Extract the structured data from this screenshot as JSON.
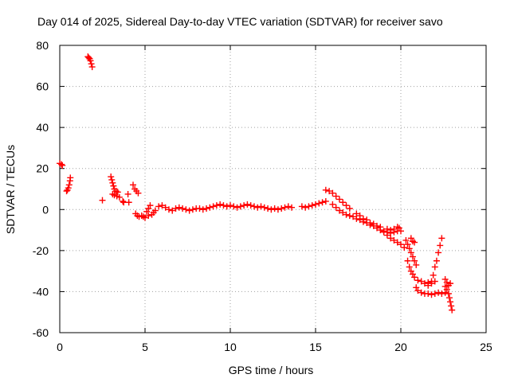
{
  "chart_data": {
    "type": "scatter",
    "title": "Day 014 of 2025, Sidereal Day-to-day VTEC variation (SDTVAR) for receiver savo",
    "xlabel": "GPS time / hours",
    "ylabel": "SDTVAR / TECUs",
    "xlim": [
      0,
      25
    ],
    "ylim": [
      -60,
      80
    ],
    "xticks": [
      0,
      5,
      10,
      15,
      20,
      25
    ],
    "yticks": [
      -60,
      -40,
      -20,
      0,
      20,
      40,
      60,
      80
    ],
    "grid": true,
    "marker": "plus",
    "series_color": "#ff0000",
    "series": [
      {
        "name": "SDTVAR",
        "points": [
          [
            0.0,
            22.5
          ],
          [
            0.1,
            22.0
          ],
          [
            0.15,
            21.5
          ],
          [
            0.4,
            9.0
          ],
          [
            0.45,
            9.5
          ],
          [
            0.5,
            10.5
          ],
          [
            0.55,
            12.0
          ],
          [
            0.6,
            14.0
          ],
          [
            0.62,
            15.5
          ],
          [
            1.65,
            74.5
          ],
          [
            1.7,
            74.0
          ],
          [
            1.75,
            73.5
          ],
          [
            1.8,
            72.5
          ],
          [
            1.85,
            71.0
          ],
          [
            1.9,
            69.5
          ],
          [
            2.5,
            4.5
          ],
          [
            3.0,
            16.0
          ],
          [
            3.05,
            14.5
          ],
          [
            3.1,
            13.0
          ],
          [
            3.15,
            11.5
          ],
          [
            3.2,
            10.0
          ],
          [
            3.3,
            9.0
          ],
          [
            3.4,
            8.5
          ],
          [
            3.1,
            7.5
          ],
          [
            3.2,
            7.0
          ],
          [
            3.35,
            6.5
          ],
          [
            3.5,
            6.0
          ],
          [
            3.7,
            4.0
          ],
          [
            3.75,
            3.5
          ],
          [
            4.0,
            7.5
          ],
          [
            4.05,
            3.5
          ],
          [
            4.3,
            12.0
          ],
          [
            4.4,
            10.0
          ],
          [
            4.5,
            9.0
          ],
          [
            4.6,
            8.0
          ],
          [
            4.45,
            -2.0
          ],
          [
            4.55,
            -3.0
          ],
          [
            4.65,
            -3.5
          ],
          [
            4.8,
            -3.0
          ],
          [
            4.9,
            -3.5
          ],
          [
            5.0,
            -4.0
          ],
          [
            5.1,
            -1.0
          ],
          [
            5.2,
            0.5
          ],
          [
            5.3,
            2.0
          ],
          [
            5.2,
            -3.0
          ],
          [
            5.4,
            -2.5
          ],
          [
            5.5,
            -1.5
          ],
          [
            5.6,
            -0.5
          ],
          [
            5.8,
            1.5
          ],
          [
            6.0,
            2.0
          ],
          [
            6.2,
            1.0
          ],
          [
            6.4,
            0.0
          ],
          [
            6.6,
            -0.5
          ],
          [
            6.8,
            0.5
          ],
          [
            7.0,
            1.0
          ],
          [
            7.2,
            0.5
          ],
          [
            7.4,
            0.0
          ],
          [
            7.6,
            -0.5
          ],
          [
            7.8,
            0.0
          ],
          [
            8.0,
            0.5
          ],
          [
            8.2,
            0.5
          ],
          [
            8.4,
            0.0
          ],
          [
            8.6,
            0.5
          ],
          [
            8.8,
            1.0
          ],
          [
            9.0,
            1.5
          ],
          [
            9.2,
            2.0
          ],
          [
            9.4,
            2.5
          ],
          [
            9.6,
            2.0
          ],
          [
            9.8,
            1.5
          ],
          [
            10.0,
            2.0
          ],
          [
            10.2,
            1.5
          ],
          [
            10.4,
            1.0
          ],
          [
            10.6,
            1.5
          ],
          [
            10.8,
            2.0
          ],
          [
            11.0,
            2.5
          ],
          [
            11.2,
            2.0
          ],
          [
            11.4,
            1.5
          ],
          [
            11.6,
            1.0
          ],
          [
            11.8,
            1.5
          ],
          [
            12.0,
            1.0
          ],
          [
            12.2,
            0.5
          ],
          [
            12.4,
            0.0
          ],
          [
            12.6,
            0.5
          ],
          [
            12.8,
            0.0
          ],
          [
            13.0,
            0.5
          ],
          [
            13.2,
            1.0
          ],
          [
            13.4,
            1.5
          ],
          [
            13.6,
            1.0
          ],
          [
            14.2,
            1.5
          ],
          [
            14.4,
            1.0
          ],
          [
            14.6,
            1.5
          ],
          [
            14.8,
            2.0
          ],
          [
            15.0,
            2.5
          ],
          [
            15.2,
            3.0
          ],
          [
            15.4,
            3.5
          ],
          [
            15.6,
            4.0
          ],
          [
            15.6,
            9.5
          ],
          [
            15.8,
            9.0
          ],
          [
            16.0,
            8.0
          ],
          [
            16.2,
            6.5
          ],
          [
            16.4,
            5.0
          ],
          [
            16.6,
            3.5
          ],
          [
            16.8,
            2.0
          ],
          [
            17.0,
            0.5
          ],
          [
            16.0,
            2.5
          ],
          [
            16.2,
            1.0
          ],
          [
            16.4,
            -0.5
          ],
          [
            16.6,
            -1.5
          ],
          [
            16.8,
            -2.5
          ],
          [
            17.0,
            -3.0
          ],
          [
            17.2,
            -3.5
          ],
          [
            17.4,
            -4.5
          ],
          [
            17.6,
            -5.0
          ],
          [
            17.8,
            -6.0
          ],
          [
            18.0,
            -6.5
          ],
          [
            18.2,
            -7.5
          ],
          [
            18.4,
            -8.0
          ],
          [
            18.6,
            -9.0
          ],
          [
            18.8,
            -10.0
          ],
          [
            19.0,
            -11.0
          ],
          [
            17.4,
            -2.0
          ],
          [
            17.6,
            -3.0
          ],
          [
            17.8,
            -4.5
          ],
          [
            18.0,
            -5.0
          ],
          [
            18.2,
            -6.5
          ],
          [
            18.4,
            -7.0
          ],
          [
            18.6,
            -8.0
          ],
          [
            18.8,
            -8.5
          ],
          [
            19.2,
            -12.5
          ],
          [
            19.4,
            -14.0
          ],
          [
            19.6,
            -15.0
          ],
          [
            19.8,
            -16.0
          ],
          [
            20.0,
            -17.0
          ],
          [
            20.2,
            -18.5
          ],
          [
            19.2,
            -9.5
          ],
          [
            19.4,
            -10.0
          ],
          [
            19.6,
            -9.5
          ],
          [
            19.8,
            -8.5
          ],
          [
            19.9,
            -9.0
          ],
          [
            19.0,
            -10.5
          ],
          [
            19.2,
            -11.0
          ],
          [
            19.4,
            -11.5
          ],
          [
            19.6,
            -11.0
          ],
          [
            19.8,
            -10.5
          ],
          [
            20.0,
            -10.5
          ],
          [
            20.3,
            -15.0
          ],
          [
            20.4,
            -17.0
          ],
          [
            20.5,
            -19.0
          ],
          [
            20.6,
            -21.0
          ],
          [
            20.7,
            -23.0
          ],
          [
            20.8,
            -25.0
          ],
          [
            20.9,
            -27.0
          ],
          [
            20.6,
            -14.0
          ],
          [
            20.7,
            -15.5
          ],
          [
            20.8,
            -16.0
          ],
          [
            20.4,
            -25.0
          ],
          [
            20.5,
            -28.0
          ],
          [
            20.6,
            -30.0
          ],
          [
            20.7,
            -31.5
          ],
          [
            20.8,
            -33.0
          ],
          [
            21.0,
            -34.5
          ],
          [
            21.2,
            -35.0
          ],
          [
            21.4,
            -36.0
          ],
          [
            21.6,
            -37.0
          ],
          [
            21.8,
            -36.0
          ],
          [
            22.0,
            -35.0
          ],
          [
            20.9,
            -38.0
          ],
          [
            21.0,
            -39.5
          ],
          [
            21.2,
            -40.5
          ],
          [
            21.4,
            -41.0
          ],
          [
            21.6,
            -41.0
          ],
          [
            21.8,
            -41.5
          ],
          [
            22.0,
            -41.0
          ],
          [
            22.2,
            -40.5
          ],
          [
            22.4,
            -41.0
          ],
          [
            22.6,
            -40.5
          ],
          [
            21.6,
            -35.5
          ],
          [
            21.8,
            -35.0
          ],
          [
            21.9,
            -32.0
          ],
          [
            22.0,
            -28.0
          ],
          [
            22.1,
            -25.0
          ],
          [
            22.2,
            -21.0
          ],
          [
            22.3,
            -17.5
          ],
          [
            22.4,
            -14.0
          ],
          [
            22.6,
            -34.0
          ],
          [
            22.7,
            -35.5
          ],
          [
            22.8,
            -37.0
          ],
          [
            22.6,
            -37.5
          ],
          [
            22.7,
            -39.0
          ],
          [
            22.8,
            -41.0
          ],
          [
            22.85,
            -43.0
          ],
          [
            22.9,
            -45.0
          ],
          [
            22.95,
            -47.0
          ],
          [
            23.0,
            -49.0
          ],
          [
            22.9,
            -36.0
          ]
        ]
      }
    ]
  }
}
